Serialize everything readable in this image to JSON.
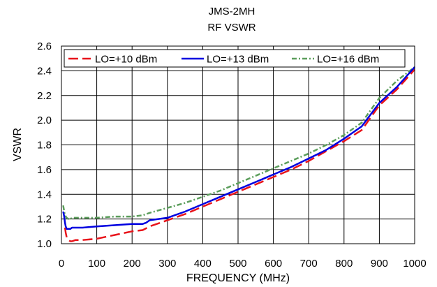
{
  "chart_data": {
    "type": "line",
    "title": "JMS-2MH",
    "subtitle": "RF VSWR",
    "xlabel": "FREQUENCY (MHz)",
    "ylabel": "VSWR",
    "xlim": [
      0,
      1000
    ],
    "ylim": [
      1.0,
      2.6
    ],
    "xticks": [
      0,
      100,
      200,
      300,
      400,
      500,
      600,
      700,
      800,
      900,
      1000
    ],
    "yticks": [
      1.0,
      1.2,
      1.4,
      1.6,
      1.8,
      2.0,
      2.2,
      2.4,
      2.6
    ],
    "xtick_labels": [
      "0",
      "100",
      "200",
      "300",
      "400",
      "500",
      "600",
      "700",
      "800",
      "900",
      "1000"
    ],
    "ytick_labels": [
      "1.0",
      "1.2",
      "1.4",
      "1.6",
      "1.8",
      "2.0",
      "2.2",
      "2.4",
      "2.6"
    ],
    "grid": true,
    "legend_position": "top",
    "series": [
      {
        "name": "LO=+10 dBm",
        "color": "#e8141b",
        "style": "dashed",
        "x": [
          10,
          12,
          15,
          20,
          25,
          30,
          40,
          60,
          100,
          150,
          200,
          230,
          250,
          300,
          350,
          400,
          450,
          500,
          550,
          600,
          650,
          700,
          750,
          800,
          850,
          900,
          950,
          1000
        ],
        "y": [
          1.13,
          1.09,
          1.05,
          1.03,
          1.02,
          1.02,
          1.03,
          1.03,
          1.04,
          1.07,
          1.1,
          1.11,
          1.14,
          1.19,
          1.24,
          1.3,
          1.36,
          1.42,
          1.48,
          1.54,
          1.6,
          1.67,
          1.75,
          1.83,
          1.92,
          2.12,
          2.25,
          2.41
        ]
      },
      {
        "name": "LO=+13 dBm",
        "color": "#0000e0",
        "style": "solid",
        "x": [
          5,
          8,
          10,
          12,
          15,
          20,
          25,
          30,
          40,
          60,
          100,
          150,
          200,
          230,
          240,
          250,
          300,
          350,
          400,
          450,
          500,
          550,
          600,
          650,
          700,
          750,
          800,
          850,
          900,
          950,
          1000
        ],
        "y": [
          1.26,
          1.22,
          1.17,
          1.14,
          1.12,
          1.12,
          1.12,
          1.13,
          1.13,
          1.13,
          1.14,
          1.15,
          1.16,
          1.16,
          1.17,
          1.19,
          1.21,
          1.26,
          1.32,
          1.38,
          1.44,
          1.5,
          1.56,
          1.62,
          1.69,
          1.76,
          1.85,
          1.95,
          2.14,
          2.27,
          2.43
        ]
      },
      {
        "name": "LO=+16 dBm",
        "color": "#5c9e5c",
        "style": "dash-dot",
        "x": [
          5,
          8,
          10,
          15,
          20,
          25,
          30,
          40,
          60,
          100,
          150,
          200,
          230,
          250,
          300,
          350,
          400,
          450,
          500,
          550,
          600,
          650,
          700,
          750,
          800,
          850,
          900,
          950,
          1000
        ],
        "y": [
          1.31,
          1.26,
          1.23,
          1.21,
          1.2,
          1.2,
          1.21,
          1.21,
          1.21,
          1.21,
          1.22,
          1.22,
          1.23,
          1.25,
          1.29,
          1.33,
          1.38,
          1.43,
          1.49,
          1.55,
          1.61,
          1.67,
          1.73,
          1.8,
          1.88,
          1.98,
          2.18,
          2.32,
          2.43
        ]
      }
    ]
  }
}
